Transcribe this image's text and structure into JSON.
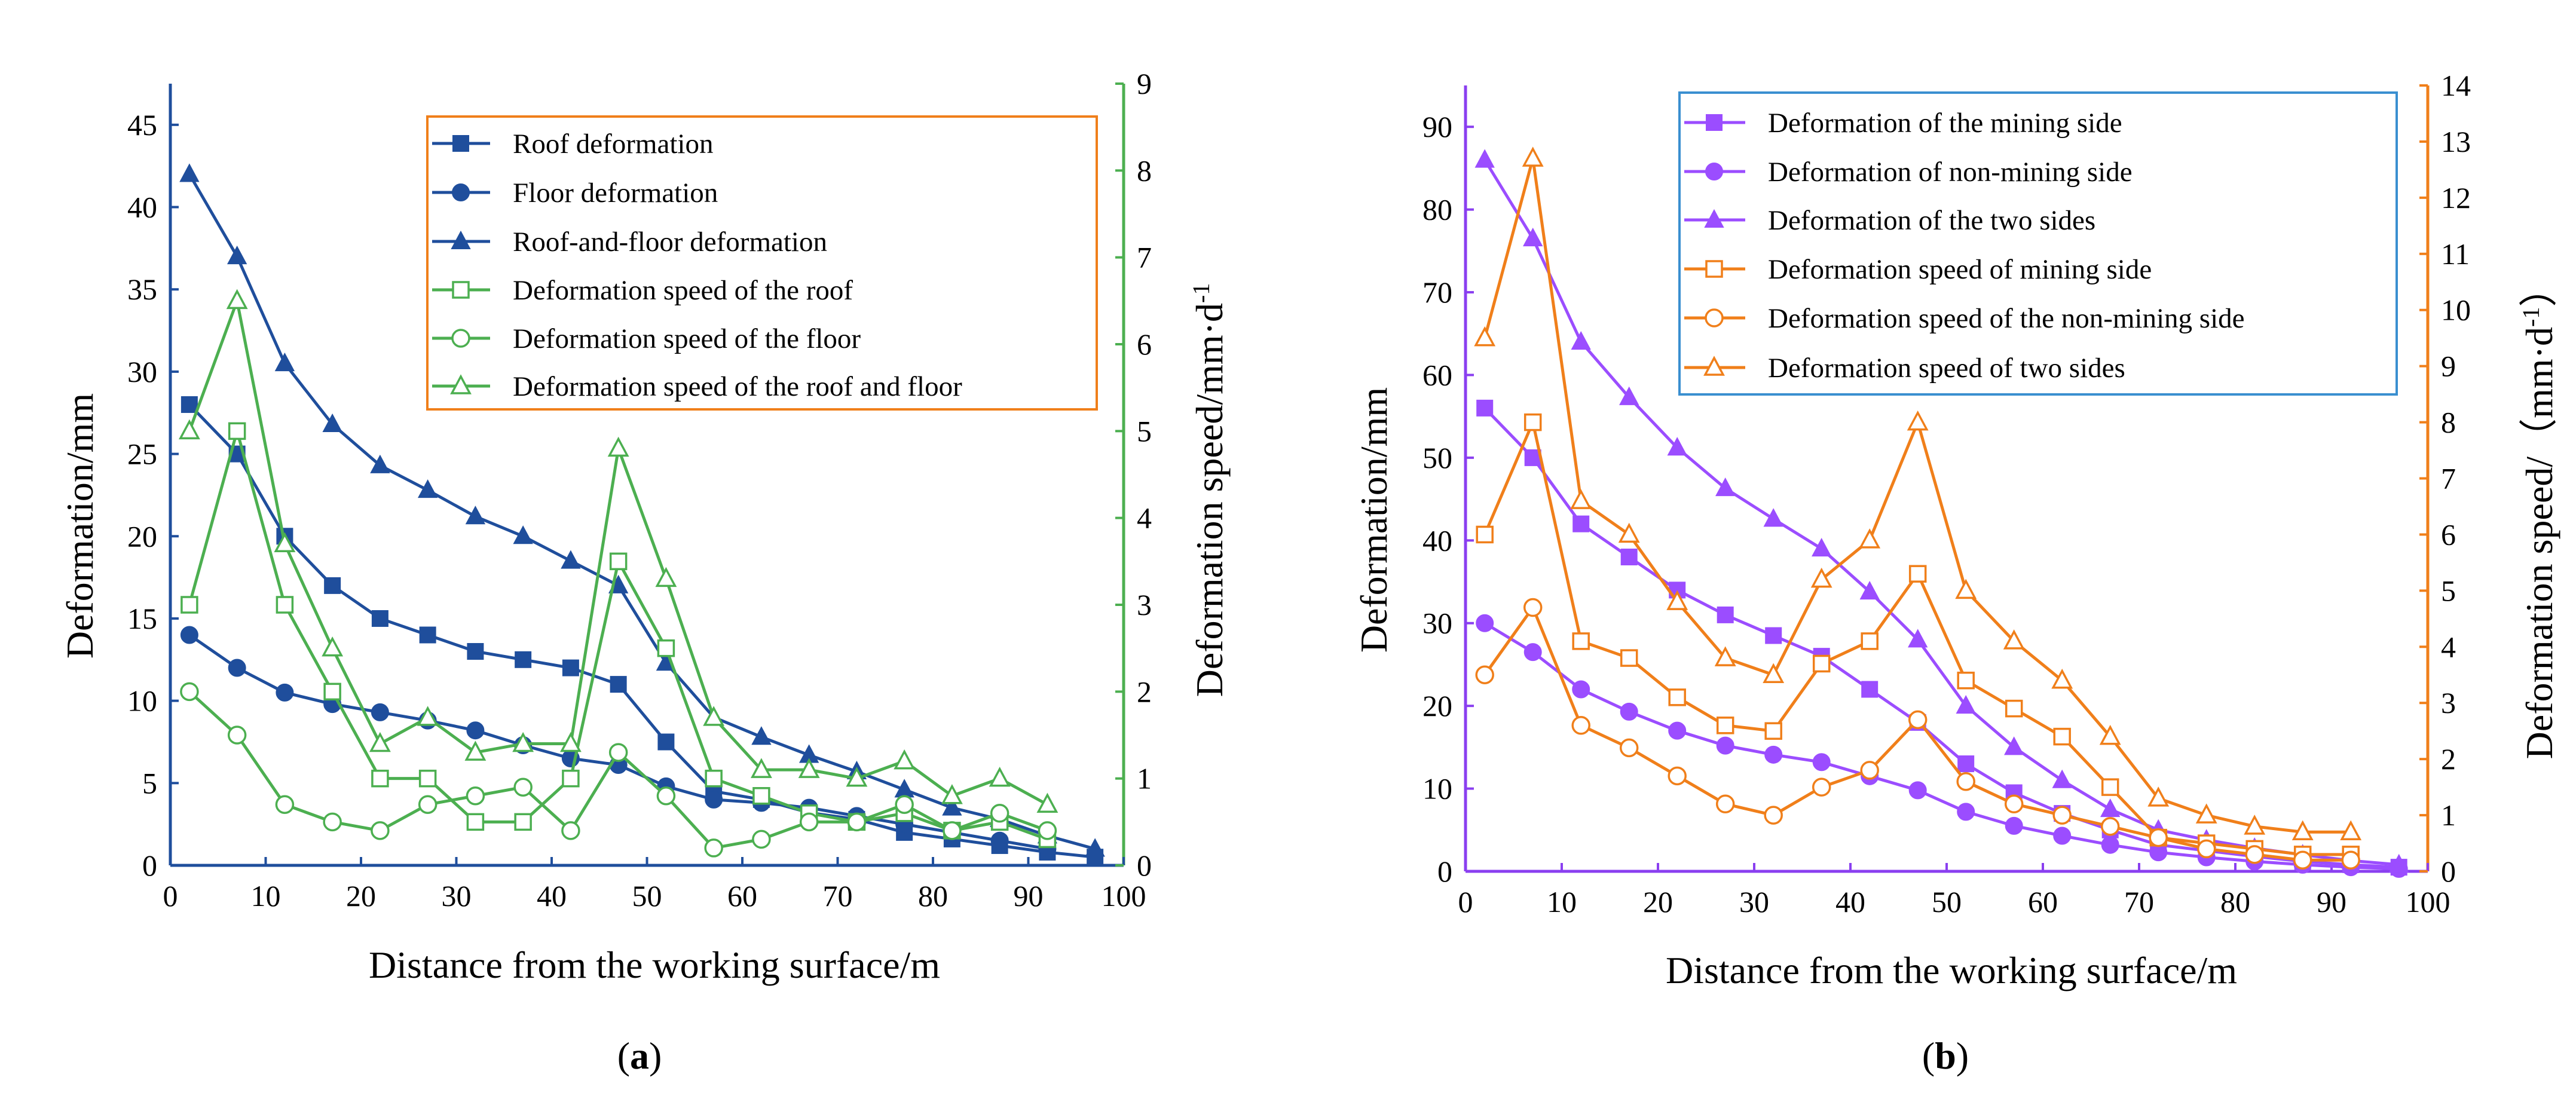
{
  "chart_data": [
    {
      "id": "a",
      "type": "line",
      "panel_label": "(a)",
      "panel_label_parts": {
        "open": "(",
        "letter": "a",
        "close": ")"
      },
      "xlabel": "Distance from the working surface/m",
      "ylabel": "Deformation/mm",
      "y2label": "Deformation speed/mm·d",
      "y2label_sup": "-1",
      "xlim": [
        0,
        100
      ],
      "ylim": [
        0,
        47.5
      ],
      "y2lim": [
        0,
        9
      ],
      "xticks": [
        0,
        10,
        20,
        30,
        40,
        50,
        60,
        70,
        80,
        90,
        100
      ],
      "yticks": [
        0,
        5,
        10,
        15,
        20,
        25,
        30,
        35,
        40,
        45
      ],
      "y2ticks": [
        0,
        1,
        2,
        3,
        4,
        5,
        6,
        7,
        8,
        9
      ],
      "axis_colors": {
        "left": "#1f4e9c",
        "right": "#4caf50"
      },
      "legend_border": "#f07f1a",
      "legend_position": "top-right",
      "series": [
        {
          "name": "Roof deformation",
          "axis": "left",
          "marker": "square",
          "filled": true,
          "color": "#1f4e9c",
          "x": [
            2,
            7,
            12,
            17,
            22,
            27,
            32,
            37,
            42,
            47,
            52,
            57,
            62,
            67,
            72,
            77,
            82,
            87,
            92,
            97
          ],
          "values": [
            28,
            25,
            20,
            17,
            15,
            14,
            13,
            12.5,
            12,
            11,
            7.5,
            4.5,
            4,
            3.2,
            2.8,
            2,
            1.6,
            1.2,
            0.8,
            0.5
          ]
        },
        {
          "name": "Floor deformation",
          "axis": "left",
          "marker": "circle",
          "filled": true,
          "color": "#1f4e9c",
          "x": [
            2,
            7,
            12,
            17,
            22,
            27,
            32,
            37,
            42,
            47,
            52,
            57,
            62,
            67,
            72,
            77,
            82,
            87,
            92
          ],
          "values": [
            14,
            12,
            10.5,
            9.8,
            9.3,
            8.8,
            8.2,
            7.3,
            6.5,
            6.1,
            4.8,
            4,
            3.8,
            3.5,
            3,
            2.5,
            2,
            1.5,
            1
          ]
        },
        {
          "name": "Roof-and-floor deformation",
          "axis": "left",
          "marker": "triangle",
          "filled": true,
          "color": "#1f4e9c",
          "x": [
            2,
            7,
            12,
            17,
            22,
            27,
            32,
            37,
            42,
            47,
            52,
            57,
            62,
            67,
            72,
            77,
            82,
            87,
            92,
            97
          ],
          "values": [
            42,
            37,
            30.5,
            26.8,
            24.3,
            22.8,
            21.2,
            20,
            18.5,
            17,
            12.3,
            9,
            7.8,
            6.7,
            5.7,
            4.6,
            3.5,
            2.8,
            1.8,
            1
          ]
        },
        {
          "name": "Deformation speed of the roof",
          "axis": "right",
          "marker": "square",
          "filled": false,
          "color": "#4caf50",
          "x": [
            2,
            7,
            12,
            17,
            22,
            27,
            32,
            37,
            42,
            47,
            52,
            57,
            62,
            67,
            72,
            77,
            82,
            87,
            92
          ],
          "values": [
            3,
            5,
            3,
            2,
            1,
            1,
            0.5,
            0.5,
            1,
            3.5,
            2.5,
            1,
            0.8,
            0.6,
            0.5,
            0.6,
            0.4,
            0.5,
            0.3
          ]
        },
        {
          "name": "Deformation speed of the floor",
          "axis": "right",
          "marker": "circle",
          "filled": false,
          "color": "#4caf50",
          "x": [
            2,
            7,
            12,
            17,
            22,
            27,
            32,
            37,
            42,
            47,
            52,
            57,
            62,
            67,
            72,
            77,
            82,
            87,
            92
          ],
          "values": [
            2,
            1.5,
            0.7,
            0.5,
            0.4,
            0.7,
            0.8,
            0.9,
            0.4,
            1.3,
            0.8,
            0.2,
            0.3,
            0.5,
            0.5,
            0.7,
            0.4,
            0.6,
            0.4
          ]
        },
        {
          "name": "Deformation speed of the roof and floor",
          "axis": "right",
          "marker": "triangle",
          "filled": false,
          "color": "#4caf50",
          "x": [
            2,
            7,
            12,
            17,
            22,
            27,
            32,
            37,
            42,
            47,
            52,
            57,
            62,
            67,
            72,
            77,
            82,
            87,
            92
          ],
          "values": [
            5,
            6.5,
            3.7,
            2.5,
            1.4,
            1.7,
            1.3,
            1.4,
            1.4,
            4.8,
            3.3,
            1.7,
            1.1,
            1.1,
            1,
            1.2,
            0.8,
            1,
            0.7
          ]
        }
      ]
    },
    {
      "id": "b",
      "type": "line",
      "panel_label": "(b)",
      "panel_label_parts": {
        "open": "(",
        "letter": "b",
        "close": ")"
      },
      "xlabel": "Distance from the working surface/m",
      "ylabel": "Deformation/mm",
      "y2label": "Deformation speed/（mm·d",
      "y2label_sup": "-1",
      "y2label_close": "）",
      "xlim": [
        0,
        100
      ],
      "ylim": [
        0,
        95
      ],
      "y2lim": [
        0,
        14
      ],
      "xticks": [
        0,
        10,
        20,
        30,
        40,
        50,
        60,
        70,
        80,
        90,
        100
      ],
      "yticks": [
        0,
        10,
        20,
        30,
        40,
        50,
        60,
        70,
        80,
        90
      ],
      "y2ticks": [
        0,
        1,
        2,
        3,
        4,
        5,
        6,
        7,
        8,
        9,
        10,
        11,
        12,
        13,
        14
      ],
      "axis_colors": {
        "left": "#8a3ff0",
        "right": "#f07f1a"
      },
      "legend_border": "#3a8fd0",
      "legend_position": "top-right",
      "series": [
        {
          "name": "Deformation of the mining side",
          "axis": "left",
          "marker": "square",
          "filled": true,
          "color": "#9b4dff",
          "x": [
            2,
            7,
            12,
            17,
            22,
            27,
            32,
            37,
            42,
            47,
            52,
            57,
            62,
            67,
            72,
            77,
            82,
            87,
            92,
            97
          ],
          "values": [
            56,
            50,
            42,
            38,
            34,
            31,
            28.5,
            26,
            22,
            18,
            13,
            9.5,
            7,
            5,
            3.2,
            2.5,
            1.8,
            1.2,
            0.8,
            0.5
          ]
        },
        {
          "name": "Deformation of non-mining side",
          "axis": "left",
          "marker": "circle",
          "filled": true,
          "color": "#9b4dff",
          "x": [
            2,
            7,
            12,
            17,
            22,
            27,
            32,
            37,
            42,
            47,
            52,
            57,
            62,
            67,
            72,
            77,
            82,
            87,
            92,
            97
          ],
          "values": [
            30,
            26.5,
            22,
            19.3,
            17,
            15.2,
            14.1,
            13.2,
            11.5,
            9.8,
            7.2,
            5.5,
            4.3,
            3.2,
            2.3,
            1.7,
            1.2,
            0.8,
            0.5,
            0.3
          ]
        },
        {
          "name": "Deformation of the two sides",
          "axis": "left",
          "marker": "triangle",
          "filled": true,
          "color": "#9b4dff",
          "x": [
            2,
            7,
            12,
            17,
            22,
            27,
            32,
            37,
            42,
            47,
            52,
            57,
            62,
            67,
            72,
            77,
            82,
            87,
            92,
            97
          ],
          "values": [
            86,
            76.5,
            64,
            57.3,
            51.2,
            46.3,
            42.6,
            39,
            33.8,
            28,
            20,
            15,
            11,
            7.5,
            5,
            3.8,
            2.8,
            2,
            1.3,
            0.8
          ]
        },
        {
          "name": "Deformation speed of mining side",
          "axis": "right",
          "marker": "square",
          "filled": false,
          "color": "#f07f1a",
          "x": [
            2,
            7,
            12,
            17,
            22,
            27,
            32,
            37,
            42,
            47,
            52,
            57,
            62,
            67,
            72,
            77,
            82,
            87,
            92
          ],
          "values": [
            6,
            8,
            4.1,
            3.8,
            3.1,
            2.6,
            2.5,
            3.7,
            4.1,
            5.3,
            3.4,
            2.9,
            2.4,
            1.5,
            0.6,
            0.5,
            0.4,
            0.3,
            0.3
          ]
        },
        {
          "name": "Deformation speed of the non-mining side",
          "axis": "right",
          "marker": "circle",
          "filled": false,
          "color": "#f07f1a",
          "x": [
            2,
            7,
            12,
            17,
            22,
            27,
            32,
            37,
            42,
            47,
            52,
            57,
            62,
            67,
            72,
            77,
            82,
            87,
            92
          ],
          "values": [
            3.5,
            4.7,
            2.6,
            2.2,
            1.7,
            1.2,
            1,
            1.5,
            1.8,
            2.7,
            1.6,
            1.2,
            1,
            0.8,
            0.6,
            0.4,
            0.3,
            0.2,
            0.2
          ]
        },
        {
          "name": "Deformation speed of two sides",
          "axis": "right",
          "marker": "triangle",
          "filled": false,
          "color": "#f07f1a",
          "x": [
            2,
            7,
            12,
            17,
            22,
            27,
            32,
            37,
            42,
            47,
            52,
            57,
            62,
            67,
            72,
            77,
            82,
            87,
            92
          ],
          "values": [
            9.5,
            12.7,
            6.6,
            6,
            4.8,
            3.8,
            3.5,
            5.2,
            5.9,
            8,
            5,
            4.1,
            3.4,
            2.4,
            1.3,
            1,
            0.8,
            0.7,
            0.7
          ]
        }
      ]
    }
  ]
}
